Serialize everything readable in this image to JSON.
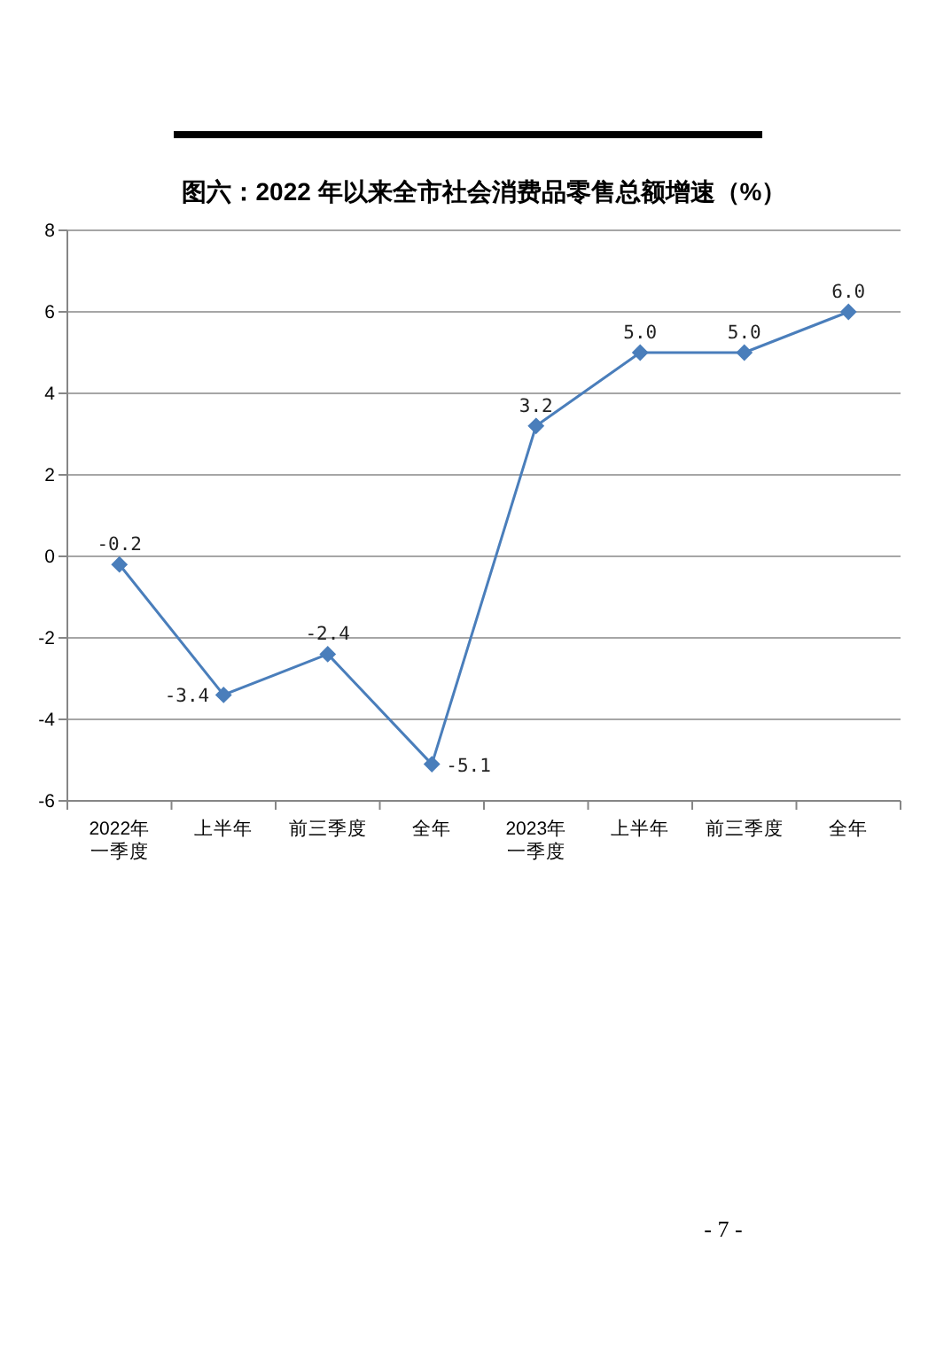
{
  "chart_data": {
    "type": "line",
    "title": "图六：2022 年以来全市社会消费品零售总额增速（%）",
    "categories": [
      "2022年一季度",
      "上半年",
      "前三季度",
      "全年",
      "2023年一季度",
      "上半年",
      "前三季度",
      "全年"
    ],
    "values": [
      -0.2,
      -3.4,
      -2.4,
      -5.1,
      3.2,
      5.0,
      5.0,
      6.0
    ],
    "value_labels": [
      "-0.2",
      "-3.4",
      "-2.4",
      "-5.1",
      "3.2",
      "5.0",
      "5.0",
      "6.0"
    ],
    "color": "#4a7ebb",
    "ylim": [
      -6,
      8
    ],
    "yticks": [
      -6,
      -4,
      -2,
      0,
      2,
      4,
      6,
      8
    ],
    "grid": "y",
    "marker": "diamond",
    "line_style": "solid",
    "annotations": [
      "- 7 -"
    ]
  }
}
